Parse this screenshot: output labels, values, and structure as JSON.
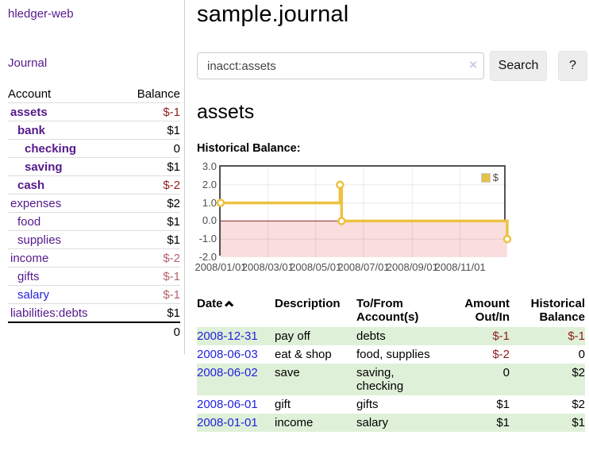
{
  "colors": {
    "link_purple": "#551A8B",
    "link_blue": "#2222dd",
    "negative_strong": "#8f1d1d",
    "negative_soft": "#b8626d",
    "row_stripe_green": "#dff0d8",
    "chart_gold": "#EDC240",
    "chart_negative_region": "#fadede",
    "chart_zero_line": "#8b2323"
  },
  "sidebar": {
    "app_title": "hledger-web",
    "nav": {
      "journal_label": "Journal"
    },
    "accounts_table": {
      "headers": {
        "account": "Account",
        "balance": "Balance"
      },
      "rows": [
        {
          "name": "assets",
          "depth": 1,
          "bold": true,
          "balance": "$-1",
          "balance_tone": "neg-strong",
          "link_tone": "purple"
        },
        {
          "name": "bank",
          "depth": 2,
          "bold": true,
          "balance": "$1",
          "balance_tone": "normal",
          "link_tone": "purple"
        },
        {
          "name": "checking",
          "depth": 3,
          "bold": true,
          "balance": "0",
          "balance_tone": "normal",
          "link_tone": "purple"
        },
        {
          "name": "saving",
          "depth": 3,
          "bold": true,
          "balance": "$1",
          "balance_tone": "normal",
          "link_tone": "purple"
        },
        {
          "name": "cash",
          "depth": 2,
          "bold": true,
          "balance": "$-2",
          "balance_tone": "neg-strong",
          "link_tone": "purple"
        },
        {
          "name": "expenses",
          "depth": 1,
          "bold": false,
          "balance": "$2",
          "balance_tone": "normal",
          "link_tone": "purple"
        },
        {
          "name": "food",
          "depth": 2,
          "bold": false,
          "balance": "$1",
          "balance_tone": "normal",
          "link_tone": "purple"
        },
        {
          "name": "supplies",
          "depth": 2,
          "bold": false,
          "balance": "$1",
          "balance_tone": "normal",
          "link_tone": "purple"
        },
        {
          "name": "income",
          "depth": 1,
          "bold": false,
          "balance": "$-2",
          "balance_tone": "neg-soft",
          "link_tone": "purple"
        },
        {
          "name": "gifts",
          "depth": 2,
          "bold": false,
          "balance": "$-1",
          "balance_tone": "neg-soft",
          "link_tone": "purple"
        },
        {
          "name": "salary",
          "depth": 2,
          "bold": false,
          "balance": "$-1",
          "balance_tone": "neg-soft",
          "link_tone": "blue"
        },
        {
          "name": "liabilities:debts",
          "depth": 1,
          "bold": false,
          "balance": "$1",
          "balance_tone": "normal",
          "link_tone": "purple"
        }
      ],
      "total": "0"
    }
  },
  "header": {
    "title": "sample.journal"
  },
  "search": {
    "value": "inacct:assets",
    "clear_icon": "×",
    "button_label": "Search",
    "help_label": "?"
  },
  "main": {
    "account_heading": "assets",
    "chart_label": "Historical Balance:"
  },
  "chart_data": {
    "type": "line",
    "step": true,
    "title": "Historical Balance:",
    "legend_position": "top-right",
    "grid": true,
    "ylim": [
      -2,
      3
    ],
    "x_range_days": [
      0,
      365
    ],
    "y_ticks": [
      {
        "value": 3,
        "label": "3.0"
      },
      {
        "value": 2,
        "label": "2.0"
      },
      {
        "value": 1,
        "label": "1.0"
      },
      {
        "value": 0,
        "label": "0.0"
      },
      {
        "value": -1,
        "label": "-1.0"
      },
      {
        "value": -2,
        "label": "-2.0"
      }
    ],
    "x_ticks": [
      {
        "day": 0,
        "label": "2008/01/01"
      },
      {
        "day": 60,
        "label": "2008/03/01"
      },
      {
        "day": 121,
        "label": "2008/05/01"
      },
      {
        "day": 182,
        "label": "2008/07/01"
      },
      {
        "day": 244,
        "label": "2008/09/01"
      },
      {
        "day": 305,
        "label": "2008/11/01"
      }
    ],
    "series": [
      {
        "name": "$",
        "color": "#EDC240",
        "points": [
          {
            "date": "2008-01-01",
            "day": 0,
            "value": 1
          },
          {
            "date": "2008-06-01",
            "day": 152,
            "value": 2
          },
          {
            "date": "2008-06-03",
            "day": 154,
            "value": 0
          },
          {
            "date": "2008-12-31",
            "day": 365,
            "value": -1
          }
        ]
      }
    ],
    "negative_region_color": "#fadede",
    "zero_line_color": "#8b2323"
  },
  "register": {
    "headers": {
      "date": "Date",
      "description": "Description",
      "accounts": "To/From\nAccount(s)",
      "amount": "Amount\nOut/In",
      "balance": "Historical\nBalance"
    },
    "rows": [
      {
        "date": "2008-12-31",
        "description": "pay off",
        "accounts": "debts",
        "amount": "$-1",
        "amount_neg": true,
        "balance": "$-1",
        "balance_neg": true,
        "shaded": true
      },
      {
        "date": "2008-06-03",
        "description": "eat & shop",
        "accounts": "food, supplies",
        "amount": "$-2",
        "amount_neg": true,
        "balance": "0",
        "balance_neg": false,
        "shaded": false
      },
      {
        "date": "2008-06-02",
        "description": "save",
        "accounts": "saving,\nchecking",
        "amount": "0",
        "amount_neg": false,
        "balance": "$2",
        "balance_neg": false,
        "shaded": true
      },
      {
        "date": "2008-06-01",
        "description": "gift",
        "accounts": "gifts",
        "amount": "$1",
        "amount_neg": false,
        "balance": "$2",
        "balance_neg": false,
        "shaded": false
      },
      {
        "date": "2008-01-01",
        "description": "income",
        "accounts": "salary",
        "amount": "$1",
        "amount_neg": false,
        "balance": "$1",
        "balance_neg": false,
        "shaded": true
      }
    ]
  }
}
